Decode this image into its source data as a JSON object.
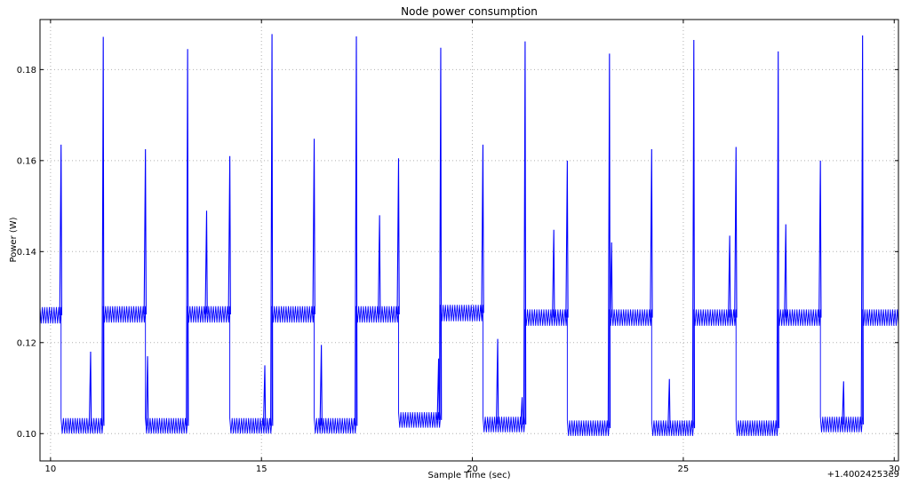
{
  "chart_data": {
    "type": "line",
    "title": "Node power consumption",
    "xlabel": "Sample Time (sec)",
    "ylabel": "Power (W)",
    "x_offset_label": "+1.40024253e9",
    "xlim": [
      9.75,
      30.1
    ],
    "ylim": [
      0.094,
      0.191
    ],
    "x_ticks": [
      10,
      15,
      20,
      25,
      30
    ],
    "y_ticks": [
      0.1,
      0.12,
      0.14,
      0.16,
      0.18
    ],
    "y_tick_labels": [
      "0.10",
      "0.12",
      "0.14",
      "0.16",
      "0.18"
    ],
    "grid": true,
    "series": [
      {
        "color": "#0000ff",
        "segments": [
          {
            "x0": 9.75,
            "x1": 10.25,
            "mean": 0.126,
            "amp": 0.0018
          },
          {
            "x0": 10.25,
            "x1": 11.25,
            "mean": 0.1017,
            "amp": 0.0017
          },
          {
            "x0": 11.25,
            "x1": 12.25,
            "mean": 0.1262,
            "amp": 0.0018
          },
          {
            "x0": 12.25,
            "x1": 13.25,
            "mean": 0.1017,
            "amp": 0.0017
          },
          {
            "x0": 13.25,
            "x1": 14.25,
            "mean": 0.1262,
            "amp": 0.0018
          },
          {
            "x0": 14.25,
            "x1": 15.25,
            "mean": 0.1017,
            "amp": 0.0017
          },
          {
            "x0": 15.25,
            "x1": 16.25,
            "mean": 0.1262,
            "amp": 0.0018
          },
          {
            "x0": 16.25,
            "x1": 17.25,
            "mean": 0.1017,
            "amp": 0.0017
          },
          {
            "x0": 17.25,
            "x1": 18.25,
            "mean": 0.1262,
            "amp": 0.0018
          },
          {
            "x0": 18.25,
            "x1": 19.25,
            "mean": 0.103,
            "amp": 0.0017
          },
          {
            "x0": 19.25,
            "x1": 20.25,
            "mean": 0.1265,
            "amp": 0.0018
          },
          {
            "x0": 20.25,
            "x1": 21.25,
            "mean": 0.102,
            "amp": 0.0017
          },
          {
            "x0": 21.25,
            "x1": 22.25,
            "mean": 0.1255,
            "amp": 0.0018
          },
          {
            "x0": 22.25,
            "x1": 23.25,
            "mean": 0.1012,
            "amp": 0.0017
          },
          {
            "x0": 23.25,
            "x1": 24.25,
            "mean": 0.1255,
            "amp": 0.0018
          },
          {
            "x0": 24.25,
            "x1": 25.25,
            "mean": 0.1012,
            "amp": 0.0017
          },
          {
            "x0": 25.25,
            "x1": 26.25,
            "mean": 0.1255,
            "amp": 0.0018
          },
          {
            "x0": 26.25,
            "x1": 27.25,
            "mean": 0.1012,
            "amp": 0.0017
          },
          {
            "x0": 27.25,
            "x1": 28.25,
            "mean": 0.1255,
            "amp": 0.0018
          },
          {
            "x0": 28.25,
            "x1": 29.25,
            "mean": 0.102,
            "amp": 0.0017
          },
          {
            "x0": 29.25,
            "x1": 30.1,
            "mean": 0.1255,
            "amp": 0.0018
          }
        ],
        "spikes": [
          {
            "x": 10.25,
            "y": 0.1635
          },
          {
            "x": 10.95,
            "y": 0.118
          },
          {
            "x": 11.25,
            "y": 0.1872
          },
          {
            "x": 12.25,
            "y": 0.1625
          },
          {
            "x": 12.3,
            "y": 0.117
          },
          {
            "x": 13.25,
            "y": 0.1845
          },
          {
            "x": 13.7,
            "y": 0.149
          },
          {
            "x": 14.25,
            "y": 0.161
          },
          {
            "x": 15.08,
            "y": 0.115
          },
          {
            "x": 15.25,
            "y": 0.1878
          },
          {
            "x": 16.25,
            "y": 0.1648
          },
          {
            "x": 16.42,
            "y": 0.1195
          },
          {
            "x": 17.25,
            "y": 0.1873
          },
          {
            "x": 17.8,
            "y": 0.148
          },
          {
            "x": 18.25,
            "y": 0.1605
          },
          {
            "x": 19.2,
            "y": 0.1165
          },
          {
            "x": 19.25,
            "y": 0.1848
          },
          {
            "x": 20.25,
            "y": 0.1635
          },
          {
            "x": 20.6,
            "y": 0.1208
          },
          {
            "x": 21.18,
            "y": 0.108
          },
          {
            "x": 21.25,
            "y": 0.1862
          },
          {
            "x": 21.93,
            "y": 0.1448
          },
          {
            "x": 22.25,
            "y": 0.16
          },
          {
            "x": 23.25,
            "y": 0.1835
          },
          {
            "x": 23.3,
            "y": 0.142
          },
          {
            "x": 24.25,
            "y": 0.1625
          },
          {
            "x": 24.67,
            "y": 0.112
          },
          {
            "x": 25.25,
            "y": 0.1865
          },
          {
            "x": 26.1,
            "y": 0.1435
          },
          {
            "x": 26.25,
            "y": 0.163
          },
          {
            "x": 27.25,
            "y": 0.184
          },
          {
            "x": 27.43,
            "y": 0.146
          },
          {
            "x": 28.25,
            "y": 0.16
          },
          {
            "x": 28.8,
            "y": 0.1115
          },
          {
            "x": 29.25,
            "y": 0.1875
          }
        ]
      }
    ]
  }
}
